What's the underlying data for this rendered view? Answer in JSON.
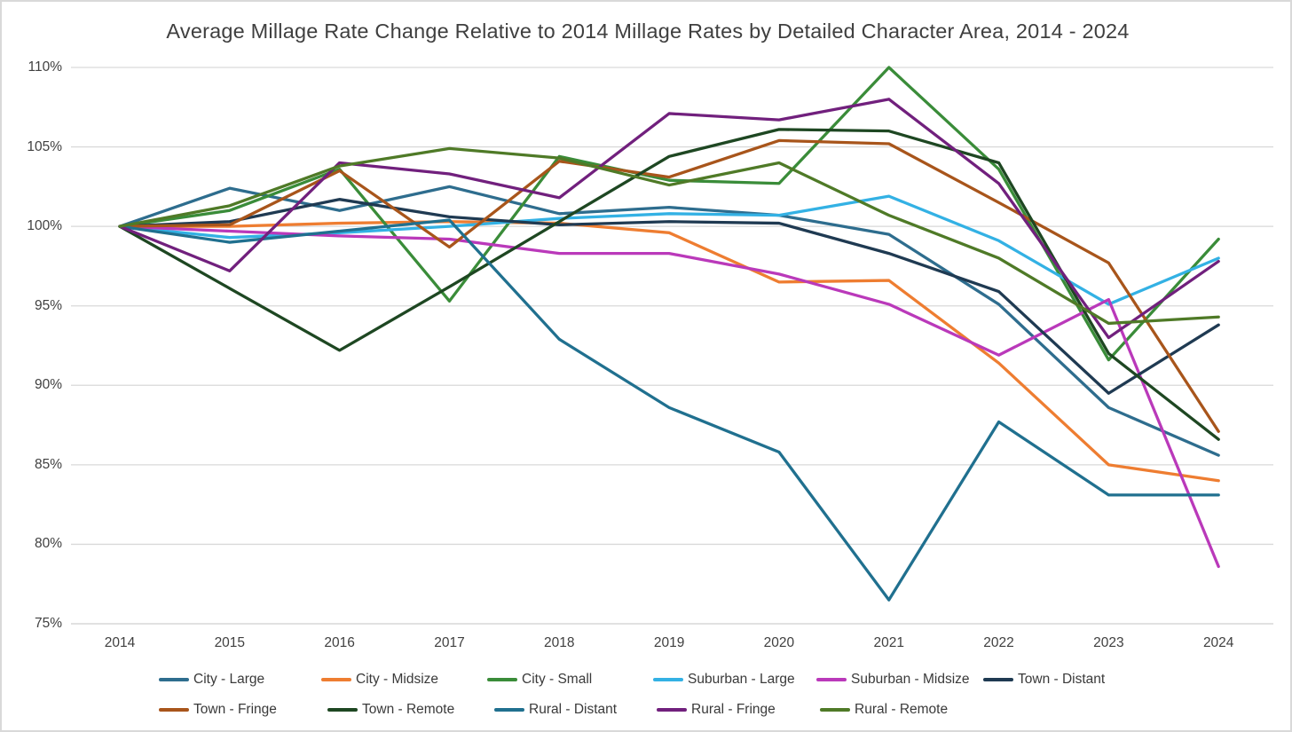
{
  "chart_data": {
    "type": "line",
    "title": "Average Millage Rate Change Relative to 2014 Millage Rates by Detailed Character Area, 2014 - 2024",
    "x_labels": [
      "2014",
      "2015",
      "2016",
      "2017",
      "2018",
      "2019",
      "2020",
      "2021",
      "2022",
      "2023",
      "2024"
    ],
    "y_ticks": [
      110,
      105,
      100,
      95,
      90,
      85,
      80,
      75
    ],
    "y_tick_labels": [
      "110%",
      "105%",
      "100%",
      "95%",
      "90%",
      "85%",
      "80%",
      "75%"
    ],
    "ylim": [
      75,
      110
    ],
    "unit": "percent of 2014 millage rate",
    "grid": "horizontal",
    "legend_position": "bottom",
    "series": [
      {
        "name": "City - Large",
        "color": "#2e6d8e",
        "values": [
          100,
          102.4,
          101.0,
          102.5,
          100.8,
          101.2,
          100.7,
          99.5,
          95.1,
          88.6,
          85.6
        ]
      },
      {
        "name": "City - Midsize",
        "color": "#ee7d31",
        "values": [
          100,
          100.0,
          100.2,
          100.3,
          100.2,
          99.6,
          96.5,
          96.6,
          91.4,
          85.0,
          84.0
        ]
      },
      {
        "name": "City - Small",
        "color": "#3a8c39",
        "values": [
          100,
          101.0,
          103.6,
          95.3,
          104.4,
          102.9,
          102.7,
          110.0,
          103.6,
          91.6,
          99.2
        ]
      },
      {
        "name": "Suburban - Large",
        "color": "#33b1e4",
        "values": [
          100,
          99.3,
          99.6,
          100.0,
          100.5,
          100.8,
          100.7,
          101.9,
          99.1,
          95.1,
          98.0
        ]
      },
      {
        "name": "Suburban - Midsize",
        "color": "#ba39ba",
        "values": [
          100,
          99.7,
          99.4,
          99.2,
          98.3,
          98.3,
          97.0,
          95.1,
          91.9,
          95.4,
          78.6
        ]
      },
      {
        "name": "Town - Distant",
        "color": "#1f3a52",
        "values": [
          100,
          100.3,
          101.7,
          100.6,
          100.1,
          100.3,
          100.2,
          98.3,
          95.9,
          89.5,
          93.8
        ]
      },
      {
        "name": "Town - Fringe",
        "color": "#a8551b",
        "values": [
          100,
          100.1,
          103.5,
          98.7,
          104.1,
          103.1,
          105.4,
          105.2,
          101.5,
          97.7,
          87.1
        ]
      },
      {
        "name": "Town - Remote",
        "color": "#1e4722",
        "values": [
          100,
          96.1,
          92.2,
          96.2,
          100.3,
          104.4,
          106.1,
          106.0,
          104.0,
          92.0,
          86.6
        ]
      },
      {
        "name": "Rural - Distant",
        "color": "#20708f",
        "values": [
          100,
          99.0,
          99.7,
          100.4,
          92.9,
          88.6,
          85.8,
          76.5,
          87.7,
          83.1,
          83.1
        ]
      },
      {
        "name": "Rural - Fringe",
        "color": "#71207d",
        "values": [
          100,
          97.2,
          104.0,
          103.3,
          101.8,
          107.1,
          106.7,
          108.0,
          102.7,
          93.0,
          97.8
        ]
      },
      {
        "name": "Rural - Remote",
        "color": "#4f7a27",
        "values": [
          100,
          101.3,
          103.8,
          104.9,
          104.3,
          102.6,
          104.0,
          100.7,
          98.0,
          93.9,
          94.3
        ]
      }
    ]
  }
}
